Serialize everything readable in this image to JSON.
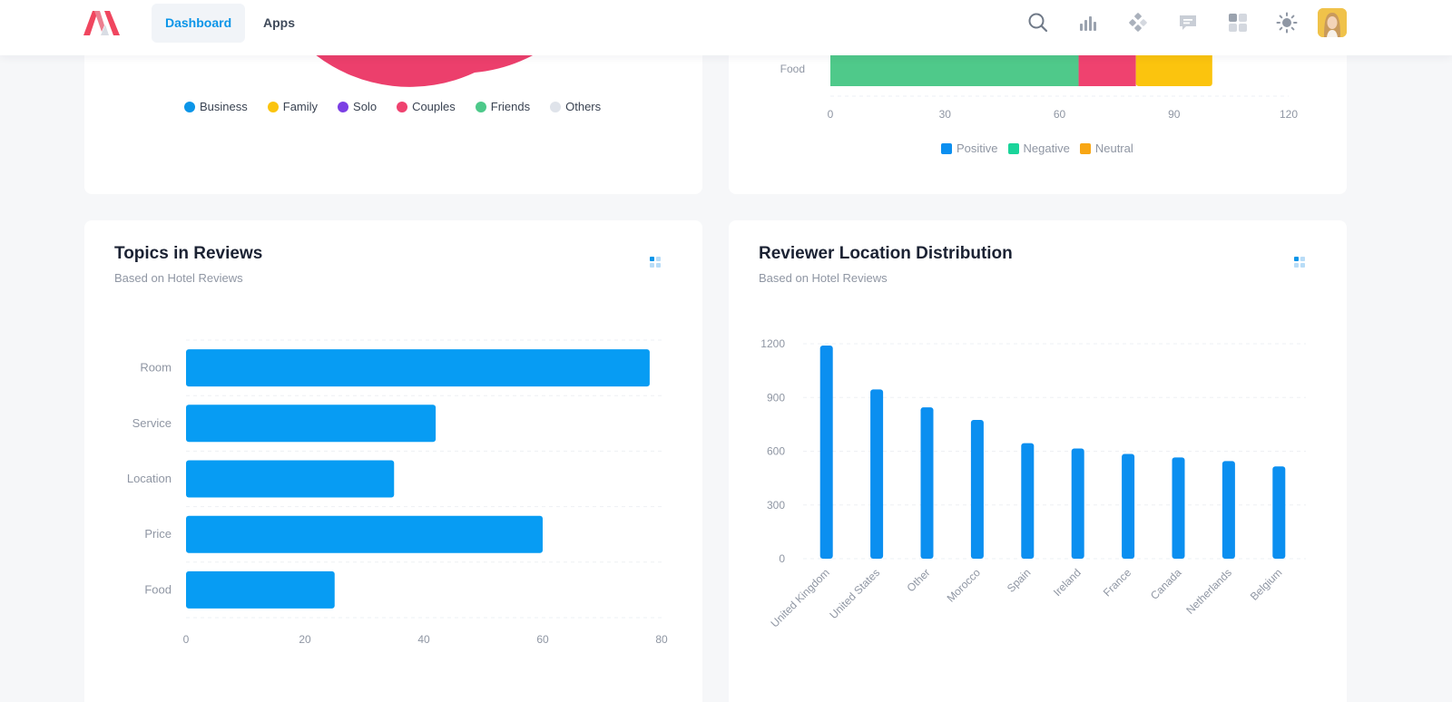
{
  "nav": {
    "dashboard_label": "Dashboard",
    "apps_label": "Apps"
  },
  "toolbar": {
    "icons": [
      "search-icon",
      "bar-chart-icon",
      "apps-diamond-icon",
      "chat-icon",
      "grid-icon",
      "sun-icon"
    ]
  },
  "pie_card": {
    "legend": [
      {
        "label": "Business",
        "color": "#0b95e8"
      },
      {
        "label": "Family",
        "color": "#fbc40e"
      },
      {
        "label": "Solo",
        "color": "#7b3fe4"
      },
      {
        "label": "Couples",
        "color": "#ef426f"
      },
      {
        "label": "Friends",
        "color": "#4dc98a"
      },
      {
        "label": "Others",
        "color": "#dfe3ea"
      }
    ],
    "slice_color": "#ec3f6c"
  },
  "sentiment_card": {
    "category": "Food",
    "segments": [
      {
        "value": 65,
        "color": "#4fc98a"
      },
      {
        "value": 15,
        "color": "#ef426f"
      },
      {
        "value": 20,
        "color": "#fbc40e"
      }
    ],
    "x_ticks": [
      "0",
      "30",
      "60",
      "90",
      "120"
    ],
    "x_max": 120,
    "legend": [
      {
        "label": "Positive",
        "color": "#0b8ff0"
      },
      {
        "label": "Negative",
        "color": "#1ad49a"
      },
      {
        "label": "Neutral",
        "color": "#f8a614"
      }
    ]
  },
  "topics_card": {
    "title": "Topics in Reviews",
    "subtitle": "Based on Hotel Reviews"
  },
  "location_card": {
    "title": "Reviewer Location Distribution",
    "subtitle": "Based on Hotel Reviews"
  },
  "chart_data": [
    {
      "type": "bar",
      "orientation": "horizontal",
      "title": "Topics in Reviews",
      "subtitle": "Based on Hotel Reviews",
      "categories": [
        "Room",
        "Service",
        "Location",
        "Price",
        "Food"
      ],
      "values": [
        78,
        42,
        35,
        60,
        25
      ],
      "x_ticks": [
        "0",
        "20",
        "40",
        "60",
        "80"
      ],
      "xlim": [
        0,
        80
      ],
      "color": "#079cf3",
      "grid": true
    },
    {
      "type": "bar",
      "orientation": "vertical",
      "title": "Reviewer Location Distribution",
      "subtitle": "Based on Hotel Reviews",
      "categories": [
        "United Kingdom",
        "United States",
        "Other",
        "Morocco",
        "Spain",
        "Ireland",
        "France",
        "Canada",
        "Netherlands",
        "Belgium"
      ],
      "values": [
        1190,
        945,
        845,
        775,
        645,
        615,
        585,
        565,
        545,
        515
      ],
      "y_ticks": [
        "0",
        "300",
        "600",
        "900",
        "1200"
      ],
      "ylim": [
        0,
        1200
      ],
      "color": "#0b8ff0",
      "grid": true
    }
  ]
}
